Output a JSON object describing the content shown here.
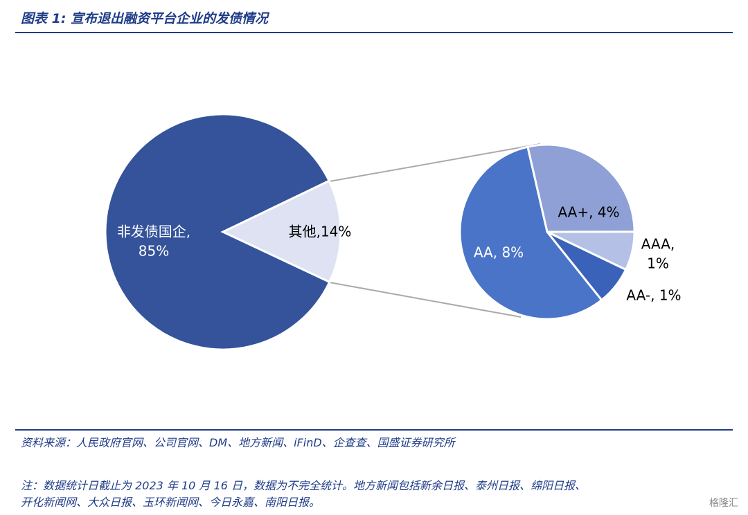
{
  "header": {
    "title": "图表 1:  宣布退出融资平台企业的发债情况"
  },
  "chart_data": [
    {
      "type": "pie",
      "categories": [
        "非发债国企",
        "其他"
      ],
      "values": [
        85,
        14
      ],
      "value_labels": [
        [
          "非发债国企,",
          "85%"
        ],
        [
          "其他,14%"
        ]
      ],
      "colors": [
        "#34539a",
        "#dfe2f2"
      ]
    },
    {
      "type": "pie",
      "categories": [
        "AA+",
        "AAA",
        "AA-",
        "AA"
      ],
      "values": [
        4,
        1,
        1,
        8
      ],
      "value_labels": [
        [
          "AA+, 4%"
        ],
        [
          "AAA,",
          "1%"
        ],
        [
          "AA-, 1%"
        ],
        [
          "AA, 8%"
        ]
      ],
      "colors": [
        "#8fa0d6",
        "#b4c0e6",
        "#3a62b8",
        "#4a74c8"
      ]
    }
  ],
  "footer": {
    "source": "资料来源：人民政府官网、公司官网、DM、地方新闻、iFinD、企查查、国盛证券研究所",
    "note": [
      "注：数据统计日截止为 2023 年 10 月 16 日，数据为不完全统计。地方新闻包括新余日报、泰州日报、绵阳日报、",
      "开化新闻网、大众日报、玉环新闻网、今日永嘉、南阳日报。"
    ],
    "watermark": "格隆汇"
  }
}
